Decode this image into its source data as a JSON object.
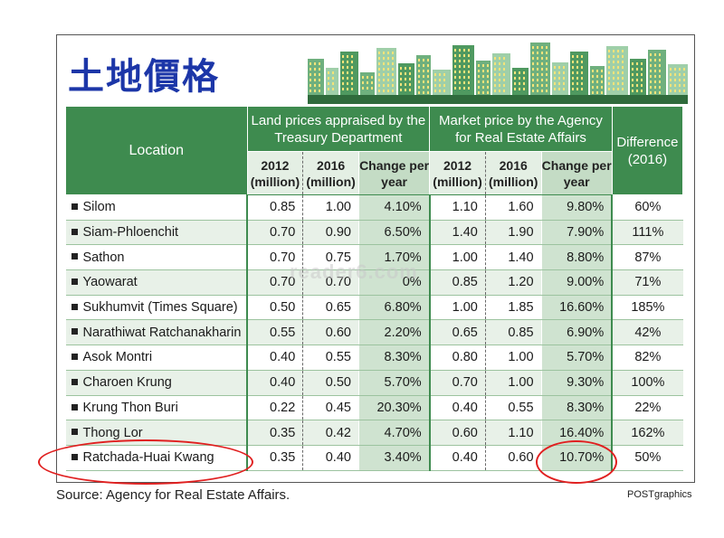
{
  "title": "土地價格",
  "table": {
    "location_header": "Location",
    "group_treasury": "Land prices appraised by the Treasury Department",
    "group_market": "Market price by the Agency for Real Estate Affairs",
    "difference_header": "Difference (2016)",
    "sub_2012": "2012 (million)",
    "sub_2016": "2016 (million)",
    "sub_change": "Change per year",
    "rows": [
      {
        "loc": "Silom",
        "t2012": "0.85",
        "t2016": "1.00",
        "tchg": "4.10%",
        "m2012": "1.10",
        "m2016": "1.60",
        "mchg": "9.80%",
        "diff": "60%"
      },
      {
        "loc": "Siam-Phloenchit",
        "t2012": "0.70",
        "t2016": "0.90",
        "tchg": "6.50%",
        "m2012": "1.40",
        "m2016": "1.90",
        "mchg": "7.90%",
        "diff": "111%"
      },
      {
        "loc": "Sathon",
        "t2012": "0.70",
        "t2016": "0.75",
        "tchg": "1.70%",
        "m2012": "1.00",
        "m2016": "1.40",
        "mchg": "8.80%",
        "diff": "87%"
      },
      {
        "loc": "Yaowarat",
        "t2012": "0.70",
        "t2016": "0.70",
        "tchg": "0%",
        "m2012": "0.85",
        "m2016": "1.20",
        "mchg": "9.00%",
        "diff": "71%"
      },
      {
        "loc": "Sukhumvit (Times Square)",
        "t2012": "0.50",
        "t2016": "0.65",
        "tchg": "6.80%",
        "m2012": "1.00",
        "m2016": "1.85",
        "mchg": "16.60%",
        "diff": "185%"
      },
      {
        "loc": "Narathiwat Ratchanakharin",
        "t2012": "0.55",
        "t2016": "0.60",
        "tchg": "2.20%",
        "m2012": "0.65",
        "m2016": "0.85",
        "mchg": "6.90%",
        "diff": "42%"
      },
      {
        "loc": "Asok Montri",
        "t2012": "0.40",
        "t2016": "0.55",
        "tchg": "8.30%",
        "m2012": "0.80",
        "m2016": "1.00",
        "mchg": "5.70%",
        "diff": "82%"
      },
      {
        "loc": "Charoen Krung",
        "t2012": "0.40",
        "t2016": "0.50",
        "tchg": "5.70%",
        "m2012": "0.70",
        "m2016": "1.00",
        "mchg": "9.30%",
        "diff": "100%"
      },
      {
        "loc": "Krung Thon Buri",
        "t2012": "0.22",
        "t2016": "0.45",
        "tchg": "20.30%",
        "m2012": "0.40",
        "m2016": "0.55",
        "mchg": "8.30%",
        "diff": "22%"
      },
      {
        "loc": "Thong Lor",
        "t2012": "0.35",
        "t2016": "0.42",
        "tchg": "4.70%",
        "m2012": "0.60",
        "m2016": "1.10",
        "mchg": "16.40%",
        "diff": "162%"
      },
      {
        "loc": "Ratchada-Huai Kwang",
        "t2012": "0.35",
        "t2016": "0.40",
        "tchg": "3.40%",
        "m2012": "0.40",
        "m2016": "0.60",
        "mchg": "10.70%",
        "diff": "50%"
      }
    ]
  },
  "source": "Source: Agency for Real Estate Affairs.",
  "credit": "POSTgraphics",
  "watermark": "reader6.com",
  "colors": {
    "header_green": "#3e8b4f",
    "title_blue": "#1c36a8",
    "highlight_red": "#e02020"
  }
}
